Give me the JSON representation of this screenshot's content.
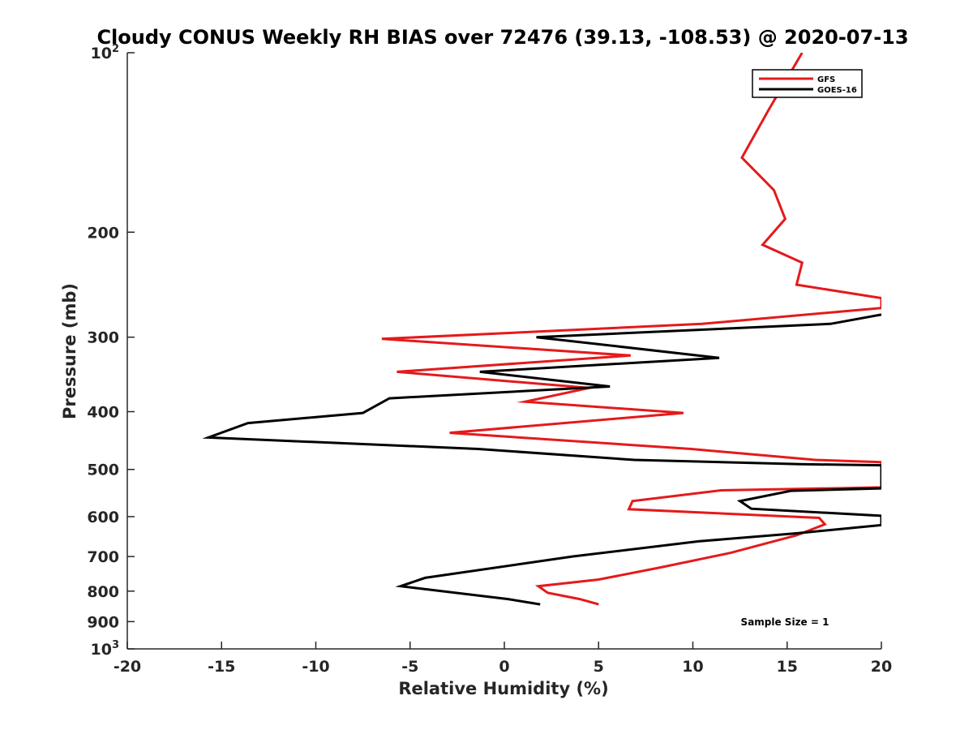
{
  "chart_data": {
    "type": "line",
    "title": "Cloudy CONUS Weekly RH BIAS over 72476 (39.13, -108.53) @ 2020-07-13",
    "xlabel": "Relative Humidity (%)",
    "ylabel": "Pressure (mb)",
    "xlim": [
      -20,
      20
    ],
    "ylim": [
      100,
      1000
    ],
    "y_scale": "log",
    "y_reversed": true,
    "x_ticks": [
      "-20",
      "-15",
      "-10",
      "-5",
      "0",
      "5",
      "10",
      "15",
      "20"
    ],
    "y_ticks": [
      {
        "value": 100,
        "base": "10",
        "exp": "2"
      },
      {
        "value": 200,
        "label": "200"
      },
      {
        "value": 300,
        "label": "300"
      },
      {
        "value": 400,
        "label": "400"
      },
      {
        "value": 500,
        "label": "500"
      },
      {
        "value": 600,
        "label": "600"
      },
      {
        "value": 700,
        "label": "700"
      },
      {
        "value": 800,
        "label": "800"
      },
      {
        "value": 900,
        "label": "900"
      },
      {
        "value": 1000,
        "base": "10",
        "exp": "3"
      }
    ],
    "grid": false,
    "legend_position": "top-right",
    "annotation": "Sample Size = 1",
    "series": [
      {
        "name": "GFS",
        "color": "#e41a1c",
        "points": [
          [
            15.8,
            100
          ],
          [
            14.0,
            125
          ],
          [
            12.6,
            150
          ],
          [
            14.3,
            170
          ],
          [
            14.9,
            190
          ],
          [
            13.7,
            210
          ],
          [
            15.8,
            225
          ],
          [
            15.5,
            245
          ],
          [
            20.0,
            258
          ],
          [
            20.0,
            258
          ],
          [
            20.0,
            268
          ],
          [
            10.5,
            285
          ],
          [
            -6.5,
            302
          ],
          [
            6.7,
            322
          ],
          [
            -5.7,
            343
          ],
          [
            4.5,
            365
          ],
          [
            1.1,
            385
          ],
          [
            9.5,
            402
          ],
          [
            -2.9,
            434
          ],
          [
            9.9,
            462
          ],
          [
            16.5,
            482
          ],
          [
            20.0,
            486
          ],
          [
            20.0,
            536
          ],
          [
            11.5,
            542
          ],
          [
            6.8,
            565
          ],
          [
            6.6,
            583
          ],
          [
            16.7,
            603
          ],
          [
            17.0,
            618
          ],
          [
            15.5,
            645
          ],
          [
            12.0,
            690
          ],
          [
            8.3,
            730
          ],
          [
            5.0,
            765
          ],
          [
            1.8,
            785
          ],
          [
            2.3,
            805
          ],
          [
            4.0,
            825
          ],
          [
            5.0,
            842
          ]
        ]
      },
      {
        "name": "GOES-16",
        "color": "#000000",
        "points": [
          [
            20.0,
            275
          ],
          [
            17.3,
            285
          ],
          [
            1.7,
            300
          ],
          [
            11.4,
            325
          ],
          [
            -1.3,
            343
          ],
          [
            5.6,
            363
          ],
          [
            -6.1,
            380
          ],
          [
            -7.5,
            402
          ],
          [
            -13.6,
            418
          ],
          [
            -15.7,
            442
          ],
          [
            -1.4,
            462
          ],
          [
            6.9,
            482
          ],
          [
            15.7,
            490
          ],
          [
            20.0,
            492
          ],
          [
            20.0,
            538
          ],
          [
            15.2,
            543
          ],
          [
            12.5,
            565
          ],
          [
            13.1,
            582
          ],
          [
            20.0,
            598
          ],
          [
            20.0,
            620
          ],
          [
            15.5,
            640
          ],
          [
            10.3,
            660
          ],
          [
            3.6,
            700
          ],
          [
            -4.2,
            760
          ],
          [
            -5.5,
            785
          ],
          [
            0.2,
            825
          ],
          [
            1.9,
            842
          ]
        ]
      }
    ]
  }
}
